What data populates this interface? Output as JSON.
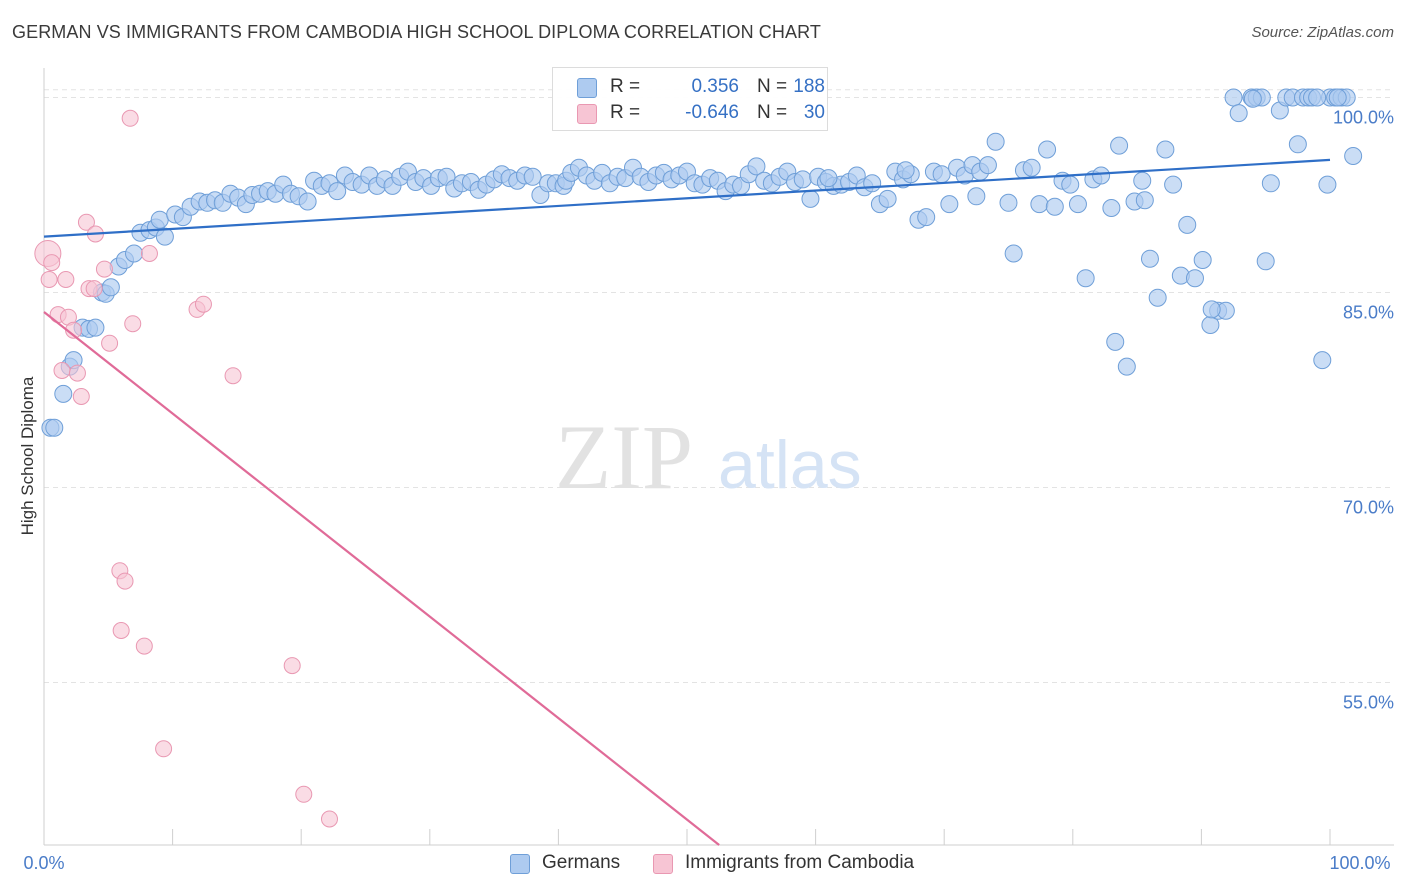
{
  "header": {
    "title": "GERMAN VS IMMIGRANTS FROM CAMBODIA HIGH SCHOOL DIPLOMA CORRELATION CHART",
    "source": "Source: ZipAtlas.com"
  },
  "watermark": {
    "zip": "ZIP",
    "atlas": "atlas"
  },
  "legend": {
    "row1": {
      "r_label": "R =",
      "r_value": "0.356",
      "n_label": "N =",
      "n_value": "188"
    },
    "row2": {
      "r_label": "R =",
      "r_value": "-0.646",
      "n_label": "N =",
      "n_value": "30"
    }
  },
  "bottom_legend": {
    "germans": "Germans",
    "cambodia": "Immigrants from Cambodia"
  },
  "colors": {
    "german_fill": "#aecbf0",
    "german_stroke": "#6f9fd8",
    "german_line": "#2f6fc7",
    "cambodia_fill": "#f7c5d4",
    "cambodia_stroke": "#e998b2",
    "cambodia_line": "#e06b98",
    "tick_color": "#4a7cc8",
    "grid": "#e3e3e3"
  },
  "chart_data": {
    "type": "scatter",
    "title": "GERMAN VS IMMIGRANTS FROM CAMBODIA HIGH SCHOOL DIPLOMA CORRELATION CHART",
    "xlabel": "",
    "ylabel": "High School Diploma",
    "xlim": [
      0,
      100
    ],
    "ylim": [
      42.5,
      101.5
    ],
    "x_tick_labels": [
      "0.0%",
      "100.0%"
    ],
    "y_ticks": [
      55.0,
      70.0,
      85.0,
      100.0
    ],
    "y_tick_labels": [
      "55.0%",
      "70.0%",
      "85.0%",
      "100.0%"
    ],
    "grid": true,
    "series": [
      {
        "name": "Germans",
        "trend": {
          "x": [
            0,
            100
          ],
          "y": [
            89.3,
            95.2
          ]
        },
        "points": [
          [
            0.5,
            74.6
          ],
          [
            0.8,
            74.6
          ],
          [
            1.5,
            77.2
          ],
          [
            2.0,
            79.3
          ],
          [
            2.3,
            79.8
          ],
          [
            3.0,
            82.3
          ],
          [
            3.5,
            82.2
          ],
          [
            4.0,
            82.3
          ],
          [
            4.5,
            85.0
          ],
          [
            4.8,
            84.9
          ],
          [
            5.2,
            85.4
          ],
          [
            5.8,
            87.0
          ],
          [
            6.3,
            87.5
          ],
          [
            7.0,
            88.0
          ],
          [
            7.5,
            89.6
          ],
          [
            8.2,
            89.8
          ],
          [
            8.7,
            90.0
          ],
          [
            9.4,
            89.3
          ],
          [
            9.0,
            90.6
          ],
          [
            10.2,
            91.0
          ],
          [
            10.8,
            90.8
          ],
          [
            11.4,
            91.6
          ],
          [
            12.1,
            92.0
          ],
          [
            12.7,
            91.9
          ],
          [
            13.3,
            92.1
          ],
          [
            13.9,
            91.9
          ],
          [
            14.5,
            92.6
          ],
          [
            15.1,
            92.3
          ],
          [
            15.7,
            91.8
          ],
          [
            16.2,
            92.5
          ],
          [
            16.8,
            92.6
          ],
          [
            17.4,
            92.8
          ],
          [
            18.0,
            92.6
          ],
          [
            18.6,
            93.3
          ],
          [
            19.2,
            92.6
          ],
          [
            19.8,
            92.4
          ],
          [
            20.5,
            92.0
          ],
          [
            21.0,
            93.6
          ],
          [
            21.6,
            93.2
          ],
          [
            22.2,
            93.4
          ],
          [
            22.8,
            92.8
          ],
          [
            23.4,
            94.0
          ],
          [
            24.0,
            93.5
          ],
          [
            24.7,
            93.3
          ],
          [
            25.3,
            94.0
          ],
          [
            25.9,
            93.2
          ],
          [
            26.5,
            93.7
          ],
          [
            27.1,
            93.2
          ],
          [
            27.7,
            93.9
          ],
          [
            28.3,
            94.3
          ],
          [
            28.9,
            93.5
          ],
          [
            29.5,
            93.8
          ],
          [
            30.1,
            93.2
          ],
          [
            30.7,
            93.8
          ],
          [
            31.3,
            93.9
          ],
          [
            31.9,
            93.0
          ],
          [
            32.5,
            93.4
          ],
          [
            33.2,
            93.5
          ],
          [
            33.8,
            92.9
          ],
          [
            34.4,
            93.3
          ],
          [
            35.0,
            93.7
          ],
          [
            35.6,
            94.1
          ],
          [
            36.2,
            93.8
          ],
          [
            36.8,
            93.6
          ],
          [
            37.4,
            94.0
          ],
          [
            38.0,
            93.9
          ],
          [
            38.6,
            92.5
          ],
          [
            39.2,
            93.4
          ],
          [
            39.8,
            93.4
          ],
          [
            40.4,
            93.2
          ],
          [
            40.6,
            93.6
          ],
          [
            41.0,
            94.2
          ],
          [
            41.6,
            94.6
          ],
          [
            42.2,
            94.0
          ],
          [
            42.8,
            93.6
          ],
          [
            43.4,
            94.2
          ],
          [
            44.0,
            93.4
          ],
          [
            44.6,
            93.9
          ],
          [
            45.2,
            93.8
          ],
          [
            45.8,
            94.6
          ],
          [
            46.4,
            93.9
          ],
          [
            47.0,
            93.5
          ],
          [
            47.6,
            94.0
          ],
          [
            48.2,
            94.2
          ],
          [
            48.8,
            93.7
          ],
          [
            49.4,
            94.0
          ],
          [
            50.0,
            94.3
          ],
          [
            50.6,
            93.4
          ],
          [
            51.2,
            93.3
          ],
          [
            51.8,
            93.8
          ],
          [
            52.4,
            93.6
          ],
          [
            53.0,
            92.8
          ],
          [
            53.6,
            93.3
          ],
          [
            54.2,
            93.2
          ],
          [
            54.8,
            94.1
          ],
          [
            55.4,
            94.7
          ],
          [
            56.0,
            93.6
          ],
          [
            56.6,
            93.4
          ],
          [
            57.2,
            93.9
          ],
          [
            57.8,
            94.3
          ],
          [
            58.4,
            93.5
          ],
          [
            59.0,
            93.7
          ],
          [
            59.6,
            92.2
          ],
          [
            60.2,
            93.9
          ],
          [
            60.8,
            93.5
          ],
          [
            61.4,
            93.2
          ],
          [
            62.0,
            93.3
          ],
          [
            62.6,
            93.5
          ],
          [
            63.2,
            94.0
          ],
          [
            63.8,
            93.1
          ],
          [
            64.4,
            93.4
          ],
          [
            65.0,
            91.8
          ],
          [
            65.6,
            92.2
          ],
          [
            66.2,
            94.3
          ],
          [
            66.8,
            93.7
          ],
          [
            67.4,
            94.1
          ],
          [
            68.0,
            90.6
          ],
          [
            68.6,
            90.8
          ],
          [
            69.2,
            94.3
          ],
          [
            69.8,
            94.1
          ],
          [
            70.4,
            91.8
          ],
          [
            71.0,
            94.6
          ],
          [
            71.6,
            94.0
          ],
          [
            72.2,
            94.8
          ],
          [
            72.8,
            94.3
          ],
          [
            73.4,
            94.8
          ],
          [
            74.0,
            96.6
          ],
          [
            75.0,
            91.9
          ],
          [
            75.4,
            88.0
          ],
          [
            76.2,
            94.4
          ],
          [
            76.8,
            94.6
          ],
          [
            77.4,
            91.8
          ],
          [
            78.0,
            96.0
          ],
          [
            78.6,
            91.6
          ],
          [
            79.2,
            93.6
          ],
          [
            79.8,
            93.3
          ],
          [
            80.4,
            91.8
          ],
          [
            81.0,
            86.1
          ],
          [
            81.6,
            93.7
          ],
          [
            82.2,
            94.0
          ],
          [
            83.0,
            91.5
          ],
          [
            83.6,
            96.3
          ],
          [
            84.2,
            79.3
          ],
          [
            84.8,
            92.0
          ],
          [
            85.4,
            93.6
          ],
          [
            86.0,
            87.6
          ],
          [
            86.6,
            84.6
          ],
          [
            87.2,
            96.0
          ],
          [
            87.8,
            93.3
          ],
          [
            88.4,
            86.3
          ],
          [
            88.9,
            90.2
          ],
          [
            89.5,
            86.1
          ],
          [
            90.1,
            87.5
          ],
          [
            90.7,
            82.5
          ],
          [
            91.3,
            83.6
          ],
          [
            91.9,
            83.6
          ],
          [
            92.5,
            100.0
          ],
          [
            92.9,
            98.8
          ],
          [
            93.9,
            100.0
          ],
          [
            94.3,
            100.0
          ],
          [
            94.7,
            100.0
          ],
          [
            95.0,
            87.4
          ],
          [
            96.1,
            99.0
          ],
          [
            96.6,
            100.0
          ],
          [
            97.1,
            100.0
          ],
          [
            97.5,
            96.4
          ],
          [
            97.9,
            100.0
          ],
          [
            98.3,
            100.0
          ],
          [
            99.4,
            79.8
          ],
          [
            99.8,
            93.3
          ],
          [
            100.0,
            100.0
          ],
          [
            100.4,
            100.0
          ],
          [
            100.9,
            100.0
          ],
          [
            101.3,
            100.0
          ],
          [
            101.8,
            95.5
          ],
          [
            61.0,
            93.8
          ],
          [
            67.0,
            94.4
          ],
          [
            72.5,
            92.4
          ],
          [
            83.3,
            81.2
          ],
          [
            85.6,
            92.1
          ],
          [
            90.8,
            83.7
          ],
          [
            95.4,
            93.4
          ],
          [
            98.6,
            100.0
          ],
          [
            100.6,
            100.0
          ],
          [
            99.0,
            100.0
          ],
          [
            94.0,
            99.9
          ]
        ]
      },
      {
        "name": "Immigrants from Cambodia",
        "trend": {
          "x": [
            0,
            52.5
          ],
          "y": [
            83.5,
            42.5
          ]
        },
        "points": [
          [
            0.3,
            88.0
          ],
          [
            0.4,
            86.0
          ],
          [
            0.6,
            87.3
          ],
          [
            1.1,
            83.3
          ],
          [
            1.4,
            79.0
          ],
          [
            1.7,
            86.0
          ],
          [
            1.9,
            83.1
          ],
          [
            2.3,
            82.1
          ],
          [
            2.6,
            78.8
          ],
          [
            2.9,
            77.0
          ],
          [
            3.3,
            90.4
          ],
          [
            3.5,
            85.3
          ],
          [
            4.0,
            89.5
          ],
          [
            4.7,
            86.8
          ],
          [
            5.1,
            81.1
          ],
          [
            5.9,
            63.6
          ],
          [
            6.0,
            59.0
          ],
          [
            6.3,
            62.8
          ],
          [
            6.7,
            98.4
          ],
          [
            6.9,
            82.6
          ],
          [
            7.8,
            57.8
          ],
          [
            8.2,
            88.0
          ],
          [
            9.3,
            49.9
          ],
          [
            11.9,
            83.7
          ],
          [
            12.4,
            84.1
          ],
          [
            14.7,
            78.6
          ],
          [
            19.3,
            56.3
          ],
          [
            20.2,
            46.4
          ],
          [
            22.2,
            44.5
          ],
          [
            3.9,
            85.3
          ]
        ]
      }
    ]
  }
}
